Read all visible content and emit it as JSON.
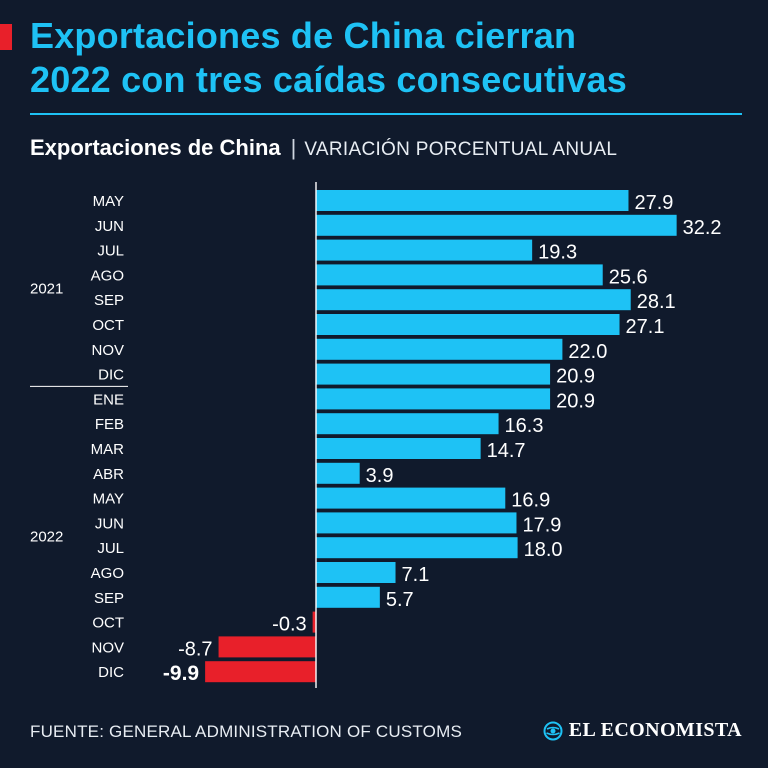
{
  "header": {
    "title_line1": "Exportaciones de China cierran",
    "title_line2": "2022 con tres caídas consecutivas",
    "subtitle_main": "Exportaciones de China",
    "subtitle_separator": "|",
    "subtitle_detail": "VARIACIÓN PORCENTUAL ANUAL"
  },
  "footer": {
    "source": "FUENTE: GENERAL ADMINISTRATION OF CUSTOMS",
    "brand": "EL ECONOMISTA"
  },
  "colors": {
    "positive": "#1ec2f5",
    "negative": "#e8202a",
    "accent": "#1ec2f5",
    "background": "#101a2c"
  },
  "chart_data": {
    "type": "bar",
    "orientation": "horizontal",
    "title": "Exportaciones de China",
    "subtitle": "VARIACIÓN PORCENTUAL ANUAL",
    "categories": [
      "MAY",
      "JUN",
      "JUL",
      "AGO",
      "SEP",
      "OCT",
      "NOV",
      "DIC",
      "ENE",
      "FEB",
      "MAR",
      "ABR",
      "MAY",
      "JUN",
      "JUL",
      "AGO",
      "SEP",
      "OCT",
      "NOV",
      "DIC"
    ],
    "values": [
      27.9,
      32.2,
      19.3,
      25.6,
      28.1,
      27.1,
      22.0,
      20.9,
      20.9,
      16.3,
      14.7,
      3.9,
      16.9,
      17.9,
      18.0,
      7.1,
      5.7,
      -0.3,
      -8.7,
      -9.9
    ],
    "labels": [
      "27.9",
      "32.2",
      "19.3",
      "25.6",
      "28.1",
      "27.1",
      "22.0",
      "20.9",
      "20.9",
      "16.3",
      "14.7",
      "3.9",
      "16.9",
      "17.9",
      "18.0",
      "7.1",
      "5.7",
      "-0.3",
      "-8.7",
      "-9.9"
    ],
    "highlight_index": 19,
    "groups": [
      {
        "label": "2021",
        "start": 0,
        "end": 7
      },
      {
        "label": "2022",
        "start": 8,
        "end": 19
      }
    ],
    "xlim": [
      -10,
      34
    ]
  }
}
